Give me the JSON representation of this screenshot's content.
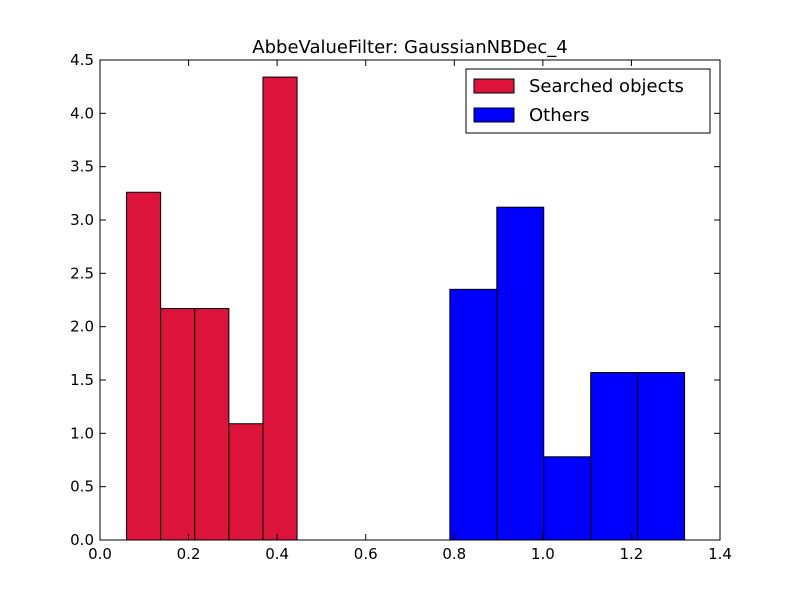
{
  "chart_data": {
    "type": "bar",
    "title": "AbbeValueFilter: GaussianNBDec_4",
    "xlabel": "",
    "ylabel": "",
    "xlim": [
      0.0,
      1.4
    ],
    "ylim": [
      0.0,
      4.5
    ],
    "x_ticks": [
      "0.0",
      "0.2",
      "0.4",
      "0.6",
      "0.8",
      "1.0",
      "1.2",
      "1.4"
    ],
    "y_ticks": [
      "0.0",
      "0.5",
      "1.0",
      "1.5",
      "2.0",
      "2.5",
      "3.0",
      "3.5",
      "4.0",
      "4.5"
    ],
    "grid": false,
    "legend_position": "top-right",
    "series": [
      {
        "name": "Searched objects",
        "color": "#dc143c",
        "bins": [
          {
            "x0": 0.06,
            "x1": 0.137,
            "value": 3.26
          },
          {
            "x0": 0.137,
            "x1": 0.214,
            "value": 2.17
          },
          {
            "x0": 0.214,
            "x1": 0.291,
            "value": 2.17
          },
          {
            "x0": 0.291,
            "x1": 0.368,
            "value": 1.09
          },
          {
            "x0": 0.368,
            "x1": 0.445,
            "value": 4.34
          }
        ]
      },
      {
        "name": "Others",
        "color": "#0000ff",
        "bins": [
          {
            "x0": 0.79,
            "x1": 0.896,
            "value": 2.35
          },
          {
            "x0": 0.896,
            "x1": 1.002,
            "value": 3.12
          },
          {
            "x0": 1.002,
            "x1": 1.108,
            "value": 0.78
          },
          {
            "x0": 1.108,
            "x1": 1.214,
            "value": 1.57
          },
          {
            "x0": 1.214,
            "x1": 1.32,
            "value": 1.57
          }
        ]
      }
    ]
  }
}
